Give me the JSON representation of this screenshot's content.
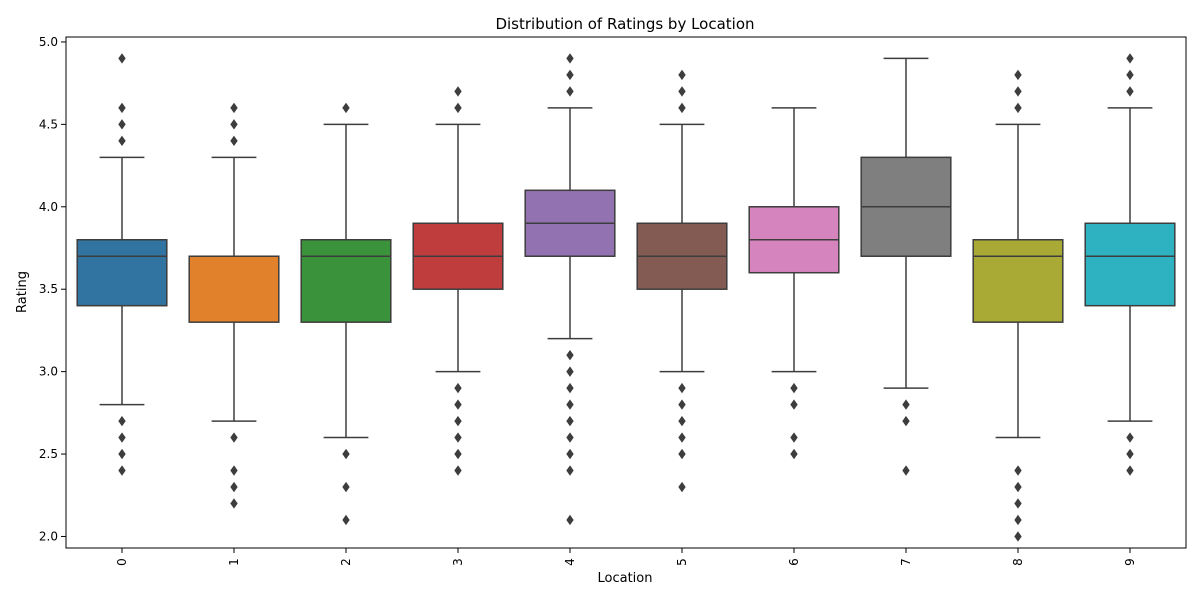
{
  "chart_data": {
    "type": "box",
    "title": "Distribution of Ratings by Location",
    "xlabel": "Location",
    "ylabel": "Rating",
    "ylim": [
      1.93,
      5.03
    ],
    "yticks": [
      "2.0",
      "2.5",
      "3.0",
      "3.5",
      "4.0",
      "4.5",
      "5.0"
    ],
    "categories": [
      "0",
      "1",
      "2",
      "3",
      "4",
      "5",
      "6",
      "7",
      "8",
      "9"
    ],
    "grid": false,
    "legend": "none",
    "colors": [
      "#3274a1",
      "#e1812c",
      "#3a923a",
      "#c03d3e",
      "#9372b2",
      "#845b53",
      "#d684bd",
      "#7f7f7f",
      "#a9aa35",
      "#2eb2c1"
    ],
    "line_color": "#3d3d3d",
    "series": [
      {
        "q1": 3.4,
        "median": 3.7,
        "q3": 3.8,
        "whisker_low": 2.8,
        "whisker_high": 4.3,
        "outliers": [
          2.4,
          2.5,
          2.6,
          2.7,
          4.4,
          4.5,
          4.6,
          4.9
        ]
      },
      {
        "q1": 3.3,
        "median": 3.7,
        "q3": 3.7,
        "whisker_low": 2.7,
        "whisker_high": 4.3,
        "outliers": [
          2.2,
          2.3,
          2.4,
          2.6,
          4.4,
          4.5,
          4.6
        ]
      },
      {
        "q1": 3.3,
        "median": 3.7,
        "q3": 3.8,
        "whisker_low": 2.6,
        "whisker_high": 4.5,
        "outliers": [
          2.1,
          2.3,
          2.5,
          4.6
        ]
      },
      {
        "q1": 3.5,
        "median": 3.7,
        "q3": 3.9,
        "whisker_low": 3.0,
        "whisker_high": 4.5,
        "outliers": [
          2.4,
          2.5,
          2.6,
          2.7,
          2.8,
          2.9,
          4.6,
          4.7
        ]
      },
      {
        "q1": 3.7,
        "median": 3.9,
        "q3": 4.1,
        "whisker_low": 3.2,
        "whisker_high": 4.6,
        "outliers": [
          2.1,
          2.4,
          2.5,
          2.6,
          2.7,
          2.8,
          2.9,
          3.0,
          3.1,
          4.7,
          4.8,
          4.9
        ]
      },
      {
        "q1": 3.5,
        "median": 3.7,
        "q3": 3.9,
        "whisker_low": 3.0,
        "whisker_high": 4.5,
        "outliers": [
          2.3,
          2.5,
          2.6,
          2.7,
          2.8,
          2.9,
          4.6,
          4.7,
          4.8
        ]
      },
      {
        "q1": 3.6,
        "median": 3.8,
        "q3": 4.0,
        "whisker_low": 3.0,
        "whisker_high": 4.6,
        "outliers": [
          2.5,
          2.6,
          2.8,
          2.9
        ]
      },
      {
        "q1": 3.7,
        "median": 4.0,
        "q3": 4.3,
        "whisker_low": 2.9,
        "whisker_high": 4.9,
        "outliers": [
          2.4,
          2.7,
          2.8
        ]
      },
      {
        "q1": 3.3,
        "median": 3.7,
        "q3": 3.8,
        "whisker_low": 2.6,
        "whisker_high": 4.5,
        "outliers": [
          2.0,
          2.1,
          2.2,
          2.3,
          2.4,
          4.6,
          4.7,
          4.8
        ]
      },
      {
        "q1": 3.4,
        "median": 3.7,
        "q3": 3.9,
        "whisker_low": 2.7,
        "whisker_high": 4.6,
        "outliers": [
          2.4,
          2.5,
          2.6,
          4.7,
          4.8,
          4.9
        ]
      }
    ]
  }
}
